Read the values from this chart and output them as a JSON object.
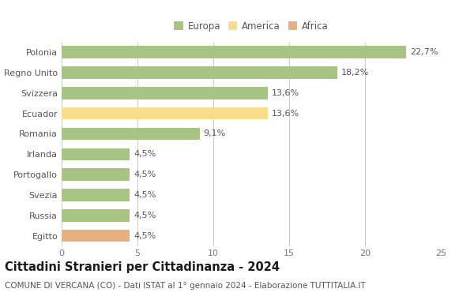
{
  "categories": [
    "Polonia",
    "Regno Unito",
    "Svizzera",
    "Ecuador",
    "Romania",
    "Irlanda",
    "Portogallo",
    "Svezia",
    "Russia",
    "Egitto"
  ],
  "values": [
    22.7,
    18.2,
    13.6,
    13.6,
    9.1,
    4.5,
    4.5,
    4.5,
    4.5,
    4.5
  ],
  "labels": [
    "22,7%",
    "18,2%",
    "13,6%",
    "13,6%",
    "9,1%",
    "4,5%",
    "4,5%",
    "4,5%",
    "4,5%",
    "4,5%"
  ],
  "continents": [
    "Europa",
    "Europa",
    "Europa",
    "America",
    "Europa",
    "Europa",
    "Europa",
    "Europa",
    "Europa",
    "Africa"
  ],
  "colors": {
    "Europa": "#a8c484",
    "America": "#f9dc8c",
    "Africa": "#e8b080"
  },
  "legend": [
    {
      "label": "Europa",
      "color": "#a8c484"
    },
    {
      "label": "America",
      "color": "#f9dc8c"
    },
    {
      "label": "Africa",
      "color": "#e8b080"
    }
  ],
  "xlim": [
    0,
    25
  ],
  "xticks": [
    0,
    5,
    10,
    15,
    20,
    25
  ],
  "title": "Cittadini Stranieri per Cittadinanza - 2024",
  "subtitle": "COMUNE DI VERCANA (CO) - Dati ISTAT al 1° gennaio 2024 - Elaborazione TUTTITALIA.IT",
  "background_color": "#ffffff",
  "grid_color": "#cccccc",
  "label_fontsize": 8,
  "tick_fontsize": 8,
  "title_fontsize": 10.5,
  "subtitle_fontsize": 7.5
}
